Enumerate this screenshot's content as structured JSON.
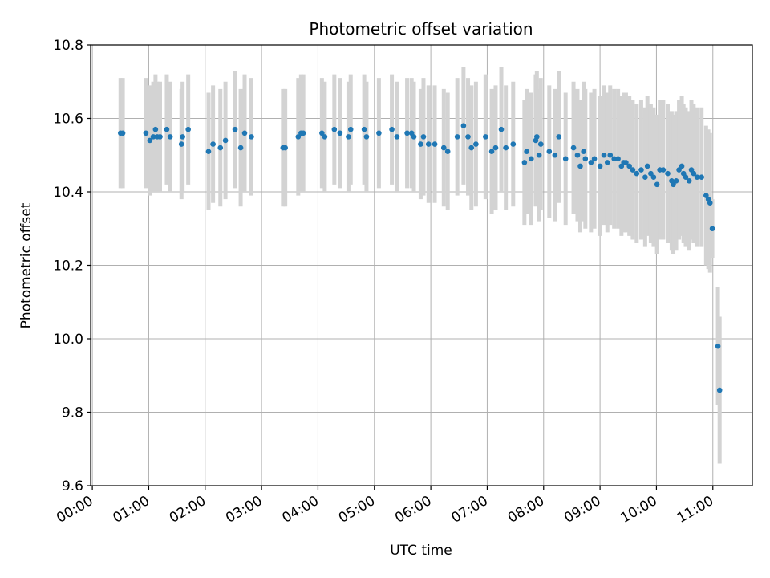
{
  "chart_data": {
    "type": "scatter",
    "title": "Photometric offset variation",
    "xlabel": "UTC time",
    "ylabel": "Photometric offset",
    "xlim_hours": [
      -0.03,
      11.7
    ],
    "ylim": [
      9.6,
      10.8
    ],
    "x_ticks": [
      "00:00",
      "01:00",
      "02:00",
      "03:00",
      "04:00",
      "05:00",
      "06:00",
      "07:00",
      "08:00",
      "09:00",
      "10:00",
      "11:00"
    ],
    "y_ticks": [
      "9.6",
      "9.8",
      "10.0",
      "10.2",
      "10.4",
      "10.6",
      "10.8"
    ],
    "y_tick_values": [
      9.6,
      9.8,
      10.0,
      10.2,
      10.4,
      10.6,
      10.8
    ],
    "grid": true,
    "colors": {
      "points": "#1f77b4",
      "errorbars": "#d3d3d3",
      "grid": "#b0b0b0"
    },
    "series": [
      {
        "x": [
          0.5,
          0.54,
          0.95,
          1.02,
          1.08,
          1.12,
          1.15,
          1.2,
          1.32,
          1.38,
          1.58,
          1.6,
          1.7,
          2.06,
          2.14,
          2.27,
          2.36,
          2.53,
          2.63,
          2.7,
          2.82,
          3.38,
          3.42,
          3.65,
          3.7,
          3.74,
          4.07,
          4.12,
          4.29,
          4.39,
          4.54,
          4.58,
          4.82,
          4.86,
          5.08,
          5.31,
          5.4,
          5.58,
          5.66,
          5.7,
          5.82,
          5.87,
          5.96,
          6.07,
          6.23,
          6.3,
          6.47,
          6.58,
          6.66,
          6.72,
          6.8,
          6.97,
          7.08,
          7.15,
          7.25,
          7.33,
          7.46,
          7.66,
          7.7,
          7.78,
          7.86,
          7.88,
          7.92,
          7.95,
          8.1,
          8.2,
          8.27,
          8.39,
          8.53,
          8.6,
          8.65,
          8.71,
          8.74,
          8.84,
          8.9,
          9.0,
          9.07,
          9.13,
          9.18,
          9.25,
          9.32,
          9.38,
          9.42,
          9.46,
          9.52,
          9.58,
          9.65,
          9.73,
          9.8,
          9.84,
          9.9,
          9.95,
          10.01,
          10.06,
          10.12,
          10.2,
          10.27,
          10.3,
          10.35,
          10.4,
          10.45,
          10.48,
          10.52,
          10.58,
          10.62,
          10.66,
          10.72,
          10.8,
          10.88,
          10.92,
          10.95,
          10.99,
          11.09,
          11.12
        ],
        "y": [
          10.56,
          10.56,
          10.56,
          10.54,
          10.55,
          10.57,
          10.55,
          10.55,
          10.57,
          10.55,
          10.53,
          10.55,
          10.57,
          10.51,
          10.53,
          10.52,
          10.54,
          10.57,
          10.52,
          10.56,
          10.55,
          10.52,
          10.52,
          10.55,
          10.56,
          10.56,
          10.56,
          10.55,
          10.57,
          10.56,
          10.55,
          10.57,
          10.57,
          10.55,
          10.56,
          10.57,
          10.55,
          10.56,
          10.56,
          10.55,
          10.53,
          10.55,
          10.53,
          10.53,
          10.52,
          10.51,
          10.55,
          10.58,
          10.55,
          10.52,
          10.53,
          10.55,
          10.51,
          10.52,
          10.57,
          10.52,
          10.53,
          10.48,
          10.51,
          10.49,
          10.54,
          10.55,
          10.5,
          10.53,
          10.51,
          10.5,
          10.55,
          10.49,
          10.52,
          10.5,
          10.47,
          10.51,
          10.49,
          10.48,
          10.49,
          10.47,
          10.5,
          10.48,
          10.5,
          10.49,
          10.49,
          10.47,
          10.48,
          10.48,
          10.47,
          10.46,
          10.45,
          10.46,
          10.44,
          10.47,
          10.45,
          10.44,
          10.42,
          10.46,
          10.46,
          10.45,
          10.43,
          10.42,
          10.43,
          10.46,
          10.47,
          10.45,
          10.44,
          10.43,
          10.46,
          10.45,
          10.44,
          10.44,
          10.39,
          10.38,
          10.37,
          10.3,
          9.98,
          9.86
        ],
        "yerr": [
          0.15,
          0.15,
          0.15,
          0.15,
          0.15,
          0.15,
          0.15,
          0.15,
          0.15,
          0.15,
          0.15,
          0.15,
          0.15,
          0.16,
          0.16,
          0.16,
          0.16,
          0.16,
          0.16,
          0.16,
          0.16,
          0.16,
          0.16,
          0.16,
          0.16,
          0.16,
          0.15,
          0.15,
          0.15,
          0.15,
          0.15,
          0.15,
          0.15,
          0.15,
          0.15,
          0.15,
          0.15,
          0.15,
          0.15,
          0.15,
          0.15,
          0.16,
          0.16,
          0.16,
          0.16,
          0.16,
          0.16,
          0.16,
          0.16,
          0.17,
          0.17,
          0.17,
          0.17,
          0.17,
          0.17,
          0.17,
          0.17,
          0.17,
          0.17,
          0.18,
          0.18,
          0.18,
          0.18,
          0.18,
          0.18,
          0.18,
          0.18,
          0.18,
          0.18,
          0.18,
          0.18,
          0.19,
          0.19,
          0.19,
          0.19,
          0.19,
          0.19,
          0.19,
          0.19,
          0.19,
          0.19,
          0.19,
          0.19,
          0.19,
          0.19,
          0.19,
          0.19,
          0.19,
          0.19,
          0.19,
          0.19,
          0.19,
          0.19,
          0.19,
          0.19,
          0.19,
          0.19,
          0.19,
          0.19,
          0.19,
          0.19,
          0.19,
          0.19,
          0.19,
          0.19,
          0.19,
          0.19,
          0.19,
          0.19,
          0.19,
          0.19,
          0.08,
          0.16,
          0.2
        ]
      }
    ]
  }
}
